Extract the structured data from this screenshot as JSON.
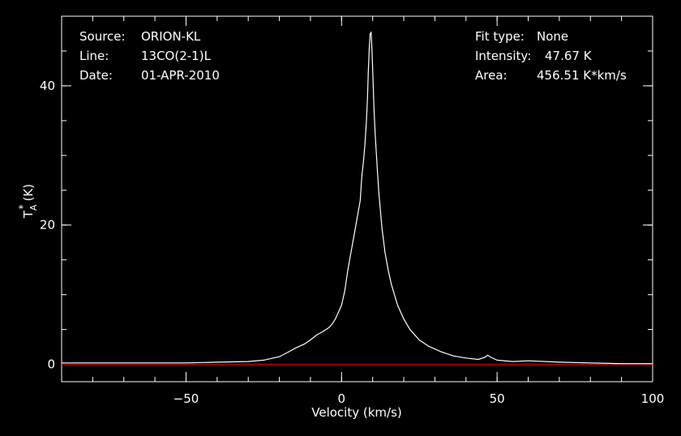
{
  "chart_data": {
    "type": "line",
    "xlabel": "Velocity (km/s)",
    "ylabel_main": "T",
    "ylabel_sub": "A",
    "ylabel_sup": "*",
    "ylabel_unit": "(K)",
    "xlim": [
      -90,
      100
    ],
    "ylim": [
      -2.5,
      50
    ],
    "x_ticks": [
      -50,
      0,
      50,
      100
    ],
    "x_tick_labels": [
      "−50",
      "0",
      "50",
      "100"
    ],
    "y_ticks": [
      0,
      20,
      40
    ],
    "y_tick_labels": [
      "0",
      "20",
      "40"
    ],
    "x_minor_step": 10,
    "y_minor_step": 5,
    "baseline_value": 0,
    "baseline_color": "#cc0000",
    "line_color": "#ffffff",
    "grid": false,
    "series": [
      {
        "x": [
          -90,
          -80,
          -70,
          -60,
          -50,
          -40,
          -30,
          -25,
          -20,
          -17,
          -15,
          -12,
          -10,
          -8,
          -6,
          -5,
          -4,
          -3,
          -2,
          -1,
          0,
          1,
          2,
          3,
          4,
          5,
          6,
          6.5,
          7,
          7.5,
          8,
          8.3,
          8.6,
          8.9,
          9.2,
          9.5,
          9.8,
          10.1,
          10.4,
          10.8,
          11.5,
          12,
          13,
          14,
          15,
          16,
          18,
          20,
          22,
          25,
          28,
          32,
          36,
          40,
          44,
          46,
          47,
          48,
          50,
          55,
          60,
          70,
          80,
          90,
          100
        ],
        "y": [
          0.2,
          0.2,
          0.2,
          0.2,
          0.2,
          0.3,
          0.4,
          0.6,
          1.1,
          1.8,
          2.3,
          2.9,
          3.5,
          4.2,
          4.7,
          5.0,
          5.3,
          5.8,
          6.5,
          7.5,
          8.5,
          10.5,
          13.5,
          16.0,
          18.5,
          21.0,
          23.5,
          27.0,
          29.0,
          31.5,
          35.0,
          38.0,
          42.0,
          45.5,
          47.5,
          47.67,
          45.0,
          41.0,
          37.0,
          33.0,
          28.0,
          24.5,
          19.5,
          16.0,
          13.5,
          11.5,
          8.5,
          6.5,
          5.0,
          3.5,
          2.6,
          1.8,
          1.2,
          0.9,
          0.7,
          1.0,
          1.3,
          1.0,
          0.6,
          0.4,
          0.5,
          0.3,
          0.2,
          0.1,
          0.1
        ]
      }
    ]
  },
  "info": {
    "source_label": "Source:",
    "source_value": "ORION-KL",
    "line_label": "Line:",
    "line_value": "13CO(2-1)L",
    "date_label": "Date:",
    "date_value": "01-APR-2010",
    "fit_label": "Fit type:",
    "fit_value": "None",
    "intensity_label": "Intensity:",
    "intensity_value": "47.67 K",
    "area_label": "Area:",
    "area_value": "456.51 K*km/s"
  }
}
